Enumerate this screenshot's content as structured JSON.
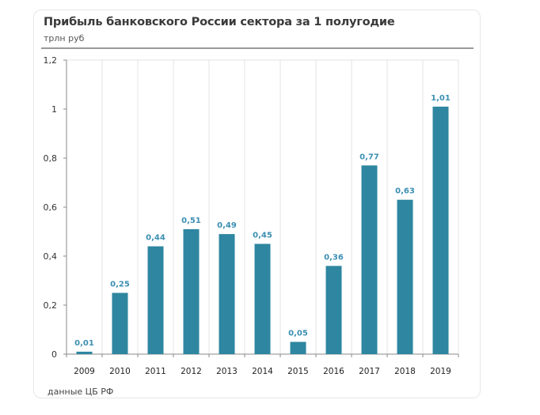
{
  "chart_data": {
    "type": "bar",
    "title": "Прибыль банковского России сектора за 1 полугодие",
    "subtitle": "трлн руб",
    "source": "данные ЦБ РФ",
    "xlabel": "",
    "ylabel": "трлн руб",
    "categories": [
      "2009",
      "2010",
      "2011",
      "2012",
      "2013",
      "2014",
      "2015",
      "2016",
      "2017",
      "2018",
      "2019"
    ],
    "values": [
      0.01,
      0.25,
      0.44,
      0.51,
      0.49,
      0.45,
      0.05,
      0.36,
      0.77,
      0.63,
      1.01
    ],
    "value_labels": [
      "0,01",
      "0,25",
      "0,44",
      "0,51",
      "0,49",
      "0,45",
      "0,05",
      "0,36",
      "0,77",
      "0,63",
      "1,01"
    ],
    "ylim": [
      0,
      1.2
    ],
    "yticks": [
      0,
      0.2,
      0.4,
      0.6,
      0.8,
      1,
      1.2
    ],
    "ytick_labels": [
      "0",
      "0,2",
      "0,4",
      "0,6",
      "0,8",
      "1",
      "1,2"
    ],
    "grid": "vertical",
    "legend": "none",
    "colors": {
      "bar": "#2e86a0",
      "label": "#3b8fb2"
    }
  }
}
